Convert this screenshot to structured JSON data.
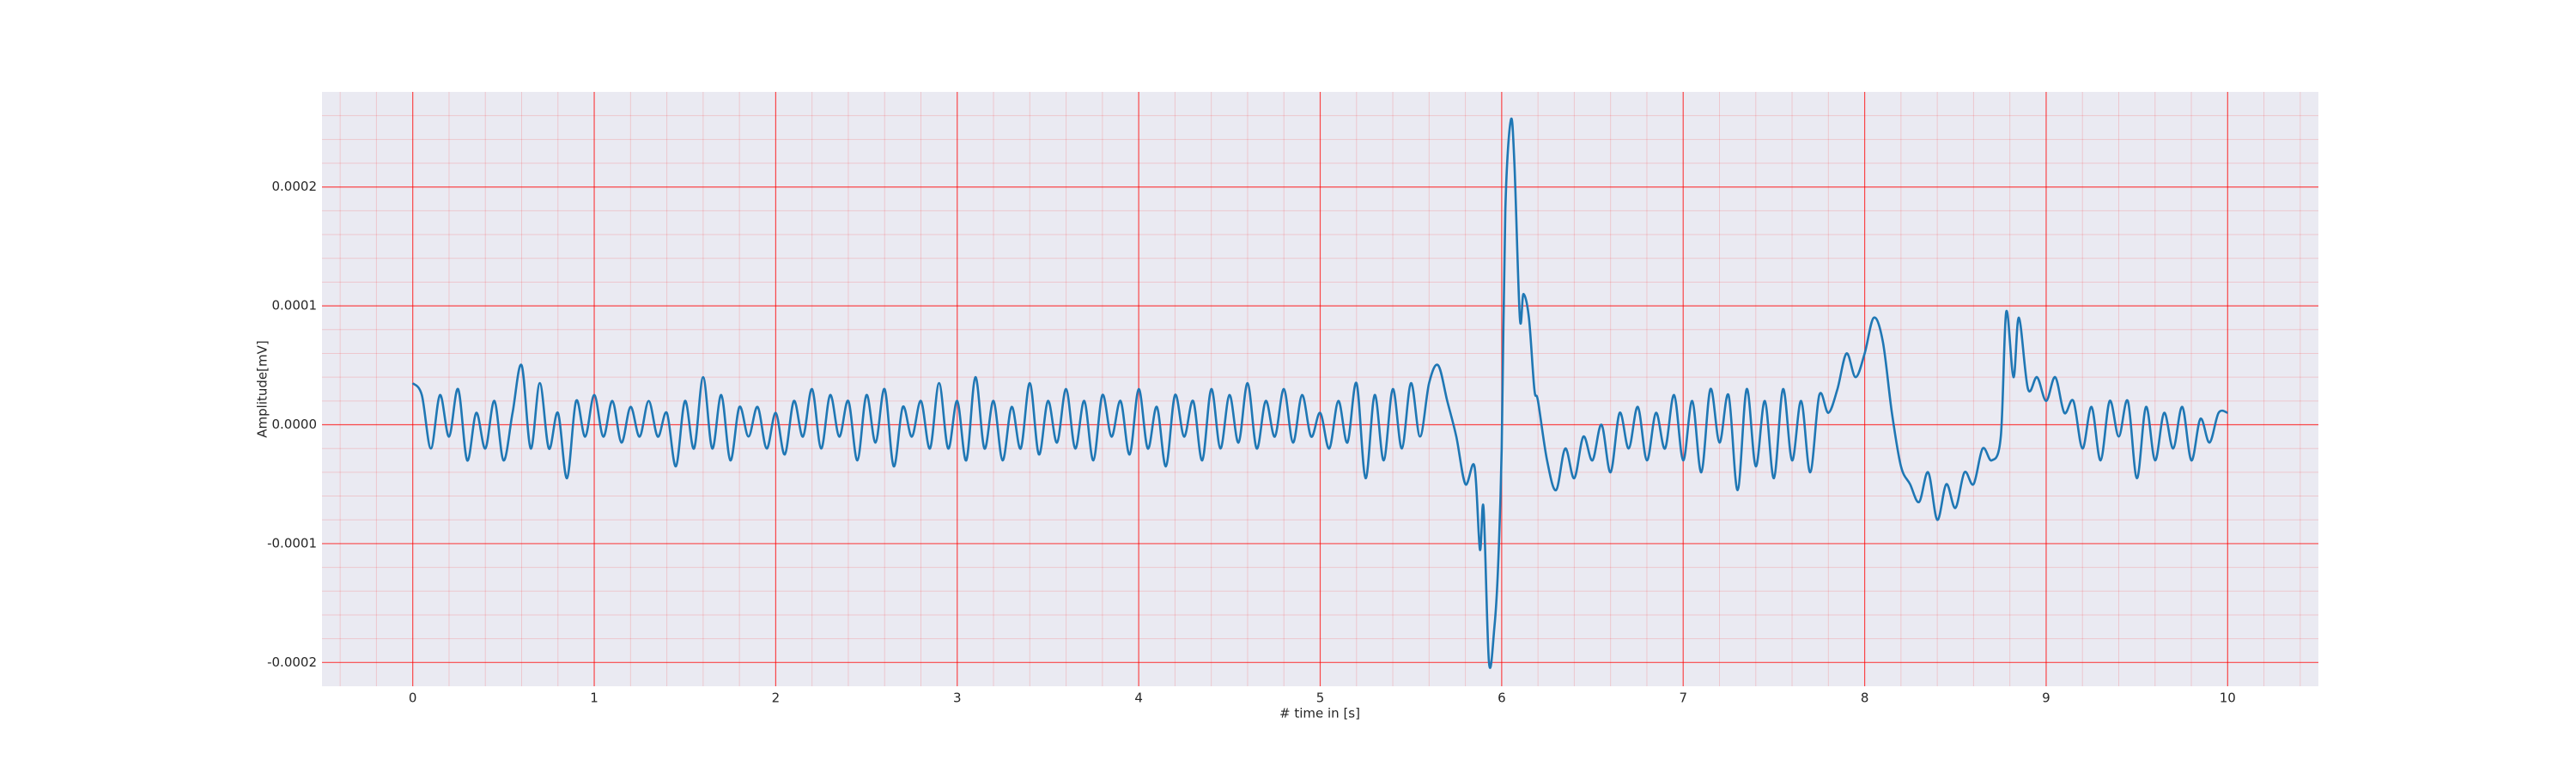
{
  "chart_data": {
    "type": "line",
    "xlabel": "# time in [s]",
    "ylabel": "Amplitude[mV]",
    "x": [
      0,
      0.05,
      0.1,
      0.15,
      0.2,
      0.25,
      0.3,
      0.35,
      0.4,
      0.45,
      0.5,
      0.55,
      0.6,
      0.65,
      0.7,
      0.75,
      0.8,
      0.85,
      0.9,
      0.95,
      1,
      1.05,
      1.1,
      1.15,
      1.2,
      1.25,
      1.3,
      1.35,
      1.4,
      1.45,
      1.5,
      1.55,
      1.6,
      1.65,
      1.7,
      1.75,
      1.8,
      1.85,
      1.9,
      1.95,
      2,
      2.05,
      2.1,
      2.15,
      2.2,
      2.25,
      2.3,
      2.35,
      2.4,
      2.45,
      2.5,
      2.55,
      2.6,
      2.65,
      2.7,
      2.75,
      2.8,
      2.85,
      2.9,
      2.95,
      3,
      3.05,
      3.1,
      3.15,
      3.2,
      3.25,
      3.3,
      3.35,
      3.4,
      3.45,
      3.5,
      3.55,
      3.6,
      3.65,
      3.7,
      3.75,
      3.8,
      3.85,
      3.9,
      3.95,
      4,
      4.05,
      4.1,
      4.15,
      4.2,
      4.25,
      4.3,
      4.35,
      4.4,
      4.45,
      4.5,
      4.55,
      4.6,
      4.65,
      4.7,
      4.75,
      4.8,
      4.85,
      4.9,
      4.95,
      5,
      5.05,
      5.1,
      5.15,
      5.2,
      5.25,
      5.3,
      5.35,
      5.4,
      5.45,
      5.5,
      5.55,
      5.6,
      5.65,
      5.7,
      5.75,
      5.8,
      5.85,
      5.88,
      5.9,
      5.93,
      5.96,
      5.98,
      6,
      6.02,
      6.05,
      6.07,
      6.1,
      6.12,
      6.15,
      6.18,
      6.2,
      6.25,
      6.3,
      6.35,
      6.4,
      6.45,
      6.5,
      6.55,
      6.6,
      6.65,
      6.7,
      6.75,
      6.8,
      6.85,
      6.9,
      6.95,
      7,
      7.05,
      7.1,
      7.15,
      7.2,
      7.25,
      7.3,
      7.35,
      7.4,
      7.45,
      7.5,
      7.55,
      7.6,
      7.65,
      7.7,
      7.75,
      7.8,
      7.85,
      7.9,
      7.95,
      8,
      8.05,
      8.1,
      8.15,
      8.2,
      8.25,
      8.3,
      8.35,
      8.4,
      8.45,
      8.5,
      8.55,
      8.6,
      8.65,
      8.7,
      8.75,
      8.78,
      8.82,
      8.85,
      8.9,
      8.95,
      9,
      9.05,
      9.1,
      9.15,
      9.2,
      9.25,
      9.3,
      9.35,
      9.4,
      9.45,
      9.5,
      9.55,
      9.6,
      9.65,
      9.7,
      9.75,
      9.8,
      9.85,
      9.9,
      9.95,
      10
    ],
    "series": [
      {
        "color": "#1f77b4",
        "values": [
          3.5e-05,
          2.5e-05,
          -2e-05,
          2.5e-05,
          -1e-05,
          3e-05,
          -3e-05,
          1e-05,
          -2e-05,
          2e-05,
          -3e-05,
          1e-05,
          5e-05,
          -2e-05,
          3.5e-05,
          -2e-05,
          1e-05,
          -4.5e-05,
          2e-05,
          -1e-05,
          2.5e-05,
          -1e-05,
          2e-05,
          -1.5e-05,
          1.5e-05,
          -1e-05,
          2e-05,
          -1e-05,
          1e-05,
          -3.5e-05,
          2e-05,
          -2e-05,
          4e-05,
          -2e-05,
          2.5e-05,
          -3e-05,
          1.5e-05,
          -1e-05,
          1.5e-05,
          -2e-05,
          1e-05,
          -2.5e-05,
          2e-05,
          -1e-05,
          3e-05,
          -2e-05,
          2.5e-05,
          -1e-05,
          2e-05,
          -3e-05,
          2.5e-05,
          -1.5e-05,
          3e-05,
          -3.5e-05,
          1.5e-05,
          -1e-05,
          2e-05,
          -2e-05,
          3.5e-05,
          -2e-05,
          2e-05,
          -3e-05,
          4e-05,
          -2e-05,
          2e-05,
          -3e-05,
          1.5e-05,
          -2e-05,
          3.5e-05,
          -2.5e-05,
          2e-05,
          -1.5e-05,
          3e-05,
          -2e-05,
          2e-05,
          -3e-05,
          2.5e-05,
          -1e-05,
          2e-05,
          -2.5e-05,
          3e-05,
          -2e-05,
          1.5e-05,
          -3.5e-05,
          2.5e-05,
          -1e-05,
          2e-05,
          -3e-05,
          3e-05,
          -2e-05,
          2.5e-05,
          -1.5e-05,
          3.5e-05,
          -2e-05,
          2e-05,
          -1e-05,
          3e-05,
          -1.5e-05,
          2.5e-05,
          -1e-05,
          1e-05,
          -2e-05,
          2e-05,
          -1.5e-05,
          3.5e-05,
          -4.5e-05,
          2.5e-05,
          -3e-05,
          3e-05,
          -2e-05,
          3.5e-05,
          -1e-05,
          3.5e-05,
          5e-05,
          2e-05,
          -1e-05,
          -5e-05,
          -3.5e-05,
          -0.000105,
          -7e-05,
          -0.0002,
          -0.00017,
          -0.00012,
          -2e-05,
          0.00018,
          0.000256,
          0.00022,
          9e-05,
          0.00011,
          9e-05,
          3e-05,
          2e-05,
          -3e-05,
          -5.5e-05,
          -2e-05,
          -4.5e-05,
          -1e-05,
          -3e-05,
          0,
          -4e-05,
          1e-05,
          -2e-05,
          1.5e-05,
          -3e-05,
          1e-05,
          -2e-05,
          2.5e-05,
          -3e-05,
          2e-05,
          -4e-05,
          3e-05,
          -1.5e-05,
          2.5e-05,
          -5.5e-05,
          3e-05,
          -3.5e-05,
          2e-05,
          -4.5e-05,
          3e-05,
          -3e-05,
          2e-05,
          -4e-05,
          2.5e-05,
          1e-05,
          3e-05,
          6e-05,
          4e-05,
          6e-05,
          9e-05,
          7e-05,
          1e-05,
          -3.5e-05,
          -5e-05,
          -6.5e-05,
          -4e-05,
          -8e-05,
          -5e-05,
          -7e-05,
          -4e-05,
          -5e-05,
          -2e-05,
          -3e-05,
          -1e-05,
          9.5e-05,
          4e-05,
          9e-05,
          3e-05,
          4e-05,
          2e-05,
          4e-05,
          1e-05,
          2e-05,
          -2e-05,
          1.5e-05,
          -3e-05,
          2e-05,
          -1e-05,
          2e-05,
          -4.5e-05,
          1.5e-05,
          -3e-05,
          1e-05,
          -2e-05,
          1.5e-05,
          -3e-05,
          5e-06,
          -1.5e-05,
          1e-05,
          1e-05
        ]
      }
    ],
    "xlim": [
      -0.5,
      10.5
    ],
    "xticks": [
      0,
      1,
      2,
      3,
      4,
      5,
      6,
      7,
      8,
      9,
      10
    ],
    "ylim": [
      -0.00022,
      0.00028
    ],
    "yticks": [
      -0.0002,
      -0.0001,
      {
        "value": 0,
        "label": "0.0000"
      },
      0.0001,
      0.0002
    ],
    "grid": true,
    "minor_grid": true,
    "grid_color": "#ff0000",
    "background": "#eaeaf2"
  }
}
